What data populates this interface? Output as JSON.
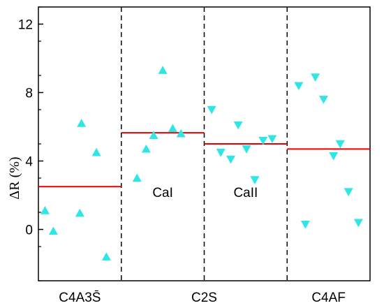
{
  "chart_data": {
    "type": "scatter",
    "ylabel": "ΔR (%)",
    "ylim": [
      -3,
      13
    ],
    "xlim": [
      0,
      4
    ],
    "yticks": [
      0,
      4,
      8,
      12
    ],
    "grid": false,
    "colors": {
      "marker": "#2ee6e6",
      "mean_line": "#e60000",
      "divider": "#000000"
    },
    "regions": [
      {
        "label": "C4A3S̄",
        "x_range": [
          0,
          1
        ],
        "mean": 2.5,
        "up_points": [
          [
            0.08,
            1.1
          ],
          [
            0.52,
            6.2
          ],
          [
            0.7,
            4.5
          ],
          [
            0.5,
            0.95
          ],
          [
            0.82,
            -1.6
          ],
          [
            0.18,
            -0.1
          ]
        ],
        "down_points": []
      },
      {
        "label": "CaI",
        "x_range": [
          1,
          2
        ],
        "mean": 5.65,
        "up_points": [
          [
            1.19,
            3.0
          ],
          [
            1.3,
            4.7
          ],
          [
            1.39,
            5.5
          ],
          [
            1.5,
            9.3
          ],
          [
            1.62,
            5.9
          ],
          [
            1.72,
            5.6
          ]
        ],
        "down_points": []
      },
      {
        "label": "CaII",
        "x_range": [
          2,
          3
        ],
        "mean": 5.0,
        "up_points": [],
        "down_points": [
          [
            2.09,
            7.0
          ],
          [
            2.2,
            4.5
          ],
          [
            2.32,
            4.1
          ],
          [
            2.41,
            6.1
          ],
          [
            2.51,
            4.7
          ],
          [
            2.61,
            2.9
          ],
          [
            2.71,
            5.2
          ],
          [
            2.82,
            5.3
          ]
        ]
      },
      {
        "label": "C4AF",
        "x_range": [
          3,
          4
        ],
        "mean": 4.7,
        "up_points": [],
        "down_points": [
          [
            3.14,
            8.4
          ],
          [
            3.22,
            0.3
          ],
          [
            3.34,
            8.9
          ],
          [
            3.44,
            7.6
          ],
          [
            3.56,
            4.3
          ],
          [
            3.64,
            5.0
          ],
          [
            3.74,
            2.2
          ],
          [
            3.86,
            0.4
          ]
        ]
      }
    ],
    "bottom_labels": [
      {
        "text": "C4A3S̄",
        "pos": 0.5
      },
      {
        "text": "C2S",
        "pos": 2.0
      },
      {
        "text": "C4AF",
        "pos": 3.5
      }
    ]
  }
}
